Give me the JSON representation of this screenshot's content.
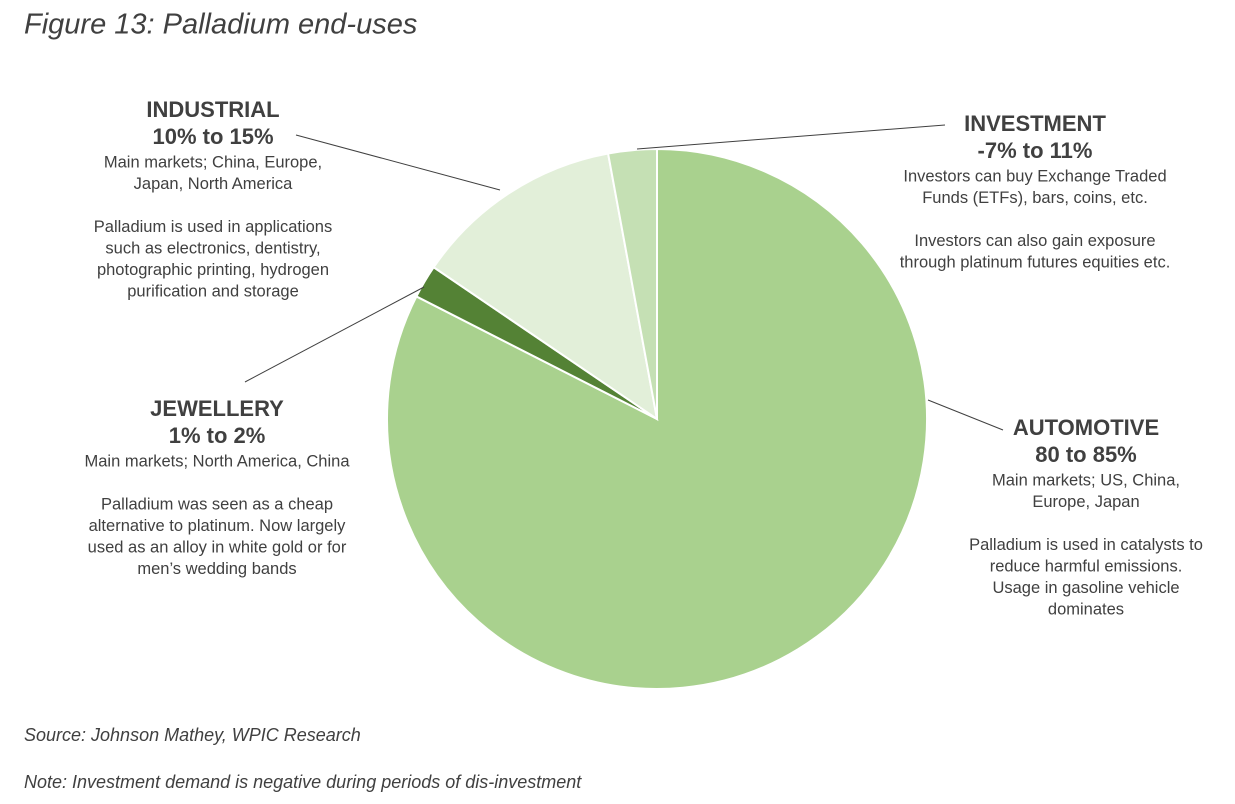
{
  "chart_data": {
    "type": "pie",
    "title": "Figure 13: Palladium end-uses",
    "categories": [
      "AUTOMOTIVE",
      "JEWELLERY",
      "INDUSTRIAL",
      "INVESTMENT"
    ],
    "values": [
      82.5,
      2,
      12.6,
      2.9
    ],
    "colors": [
      "#a9d18e",
      "#548235",
      "#e2efd9",
      "#c5e0b4"
    ],
    "range_labels": [
      "80 to 85%",
      "1% to 2%",
      "10% to 15%",
      "-7% to 11%"
    ],
    "notes": [
      [
        [
          "Main markets; US, China,",
          "Europe, Japan"
        ],
        [
          "Palladium is used in catalysts to",
          "reduce harmful emissions.",
          "Usage in gasoline vehicle",
          "dominates"
        ]
      ],
      [
        [
          "Main markets; North America, China"
        ],
        [
          "Palladium was seen as a cheap",
          "alternative to platinum. Now largely",
          "used as an alloy in white gold or for",
          "men’s wedding bands"
        ]
      ],
      [
        [
          "Main markets; China, Europe,",
          "Japan, North America"
        ],
        [
          "Palladium is used in applications",
          "such as electronics, dentistry,",
          "photographic printing, hydrogen",
          "purification and storage"
        ]
      ],
      [
        [
          "Investors can buy Exchange Traded",
          "Funds (ETFs), bars, coins, etc."
        ],
        [
          "Investors can also gain exposure",
          "through platinum futures equities etc."
        ]
      ]
    ],
    "source": "Source: Johnson Mathey, WPIC Research",
    "note": "Note: Investment demand is negative during periods of dis-investment"
  }
}
